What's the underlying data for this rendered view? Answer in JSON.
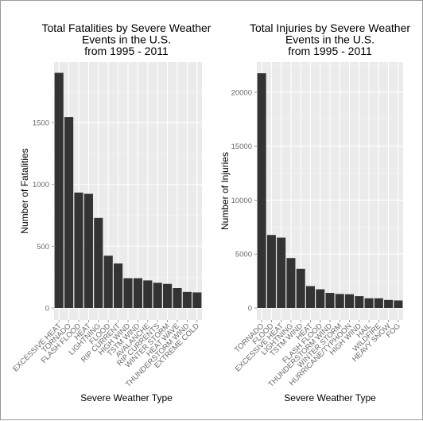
{
  "chart_data": [
    {
      "type": "bar",
      "title_lines": [
        "Total Fatalities by Severe Weather",
        "Events in the U.S.",
        "from 1995 - 2011"
      ],
      "xlabel": "Severe Weather Type",
      "ylabel": "Number of Fatalities",
      "ylim": [
        0,
        1990
      ],
      "yticks": [
        0,
        500,
        1000,
        1500
      ],
      "grid": true,
      "categories": [
        "EXCESSIVE HEAT",
        "TORNADO",
        "FLASH FLOOD",
        "HEAT",
        "LIGHTNING",
        "FLOOD",
        "RIP CURRENT",
        "HIGH WIND",
        "TSTM WIND",
        "AVALANCHE",
        "RIP CURRENTS",
        "WINTER STORM",
        "HEAT WAVE",
        "THUNDERSTORM WIND",
        "EXTREME COLD"
      ],
      "values": [
        1903,
        1545,
        934,
        924,
        729,
        423,
        360,
        241,
        241,
        223,
        204,
        195,
        161,
        130,
        126
      ]
    },
    {
      "type": "bar",
      "title_lines": [
        "Total Injuries by Severe Weather",
        "Events in the U.S.",
        "from 1995 - 2011"
      ],
      "xlabel": "Severe Weather Type",
      "ylabel": "Number of Injuries",
      "ylim": [
        0,
        22800
      ],
      "yticks": [
        0,
        5000,
        10000,
        15000,
        20000
      ],
      "grid": true,
      "categories": [
        "TORNADO",
        "FLOOD",
        "EXCESSIVE HEAT",
        "LIGHTNING",
        "TSTM WIND",
        "HEAT",
        "FLASH FLOOD",
        "THUNDERSTORM WIND",
        "WINTER STORM",
        "HURRICANE/TYPHOON",
        "HIGH WIND",
        "HAIL",
        "WILDFIRE",
        "HEAVY SNOW",
        "FOG"
      ],
      "values": [
        21765,
        6769,
        6525,
        4631,
        3630,
        2030,
        1734,
        1400,
        1300,
        1275,
        1100,
        900,
        900,
        750,
        700
      ]
    }
  ]
}
